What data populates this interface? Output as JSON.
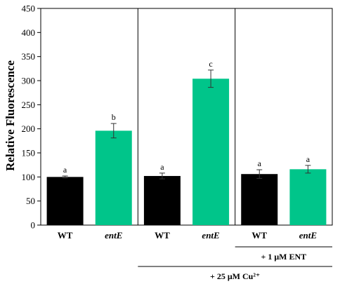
{
  "chart_data": {
    "type": "bar",
    "ylabel": "Relative Fluorescence",
    "xlabel": "",
    "title": "",
    "ylim": [
      0,
      450
    ],
    "yticks": [
      0,
      50,
      100,
      150,
      200,
      250,
      300,
      350,
      400,
      450
    ],
    "grid": false,
    "categories": [
      "WT",
      "entE",
      "WT",
      "entE",
      "WT",
      "entE"
    ],
    "values": [
      100,
      196,
      102,
      304,
      106,
      116
    ],
    "errors": [
      2,
      15,
      6,
      18,
      9,
      8
    ],
    "significance": [
      "a",
      "b",
      "a",
      "c",
      "a",
      "a"
    ],
    "bar_colors": [
      "#000000",
      "#00c58a",
      "#000000",
      "#00c58a",
      "#000000",
      "#00c58a"
    ],
    "italic_categories": [
      false,
      true,
      false,
      true,
      false,
      true
    ],
    "treatments": [
      {
        "label": "+ 1 μM ENT",
        "from_category": 4,
        "to_category": 5
      },
      {
        "label": "+ 25 μM Cu²⁺",
        "from_category": 2,
        "to_category": 5
      }
    ]
  }
}
